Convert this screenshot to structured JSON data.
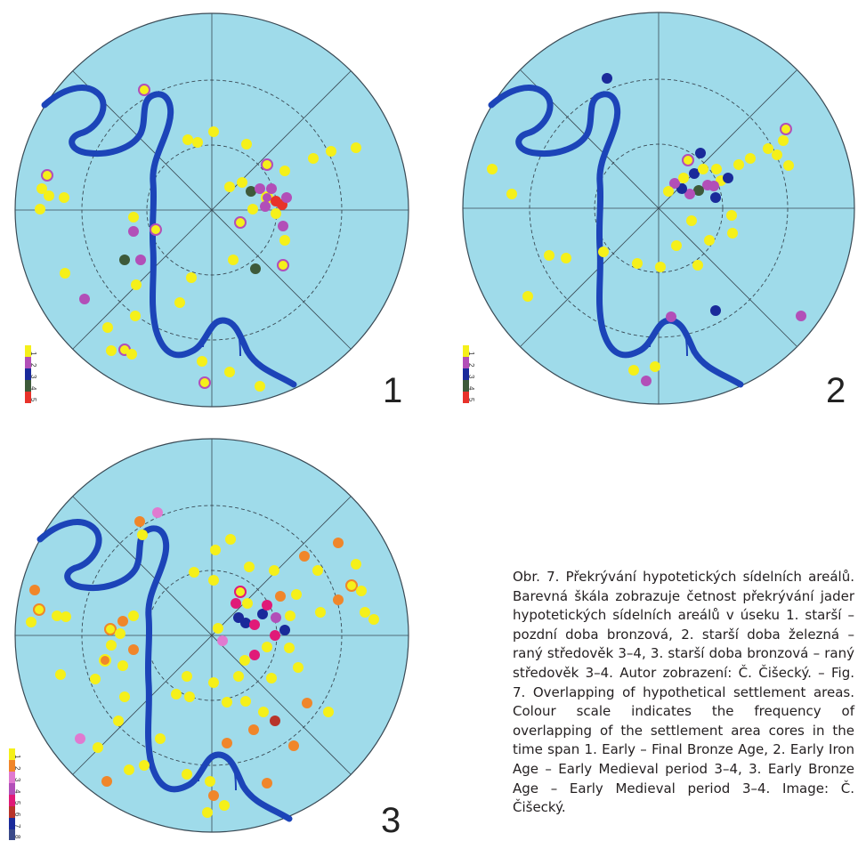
{
  "figure": {
    "caption": "Obr. 7. Překrývání hypotetických sídelních areálů. Barevná škála zobrazuje četnost překrývání jader hypotetických sídelních areálů v úseku 1. starší – pozdní doba bronzová, 2. starší doba železná – raný středověk 3–4, 3. starší doba bronzová – raný středověk 3–4. Autor zobrazení: Č. Čišecký. – Fig. 7. Overlapping of hypothetical settlement areas. Colour scale indicates the frequency of overlapping of the settlement area cores in the time span 1. Early – Final Bronze Age, 2. Early Iron Age – Early Medieval period 3–4, 3. Early Bronze Age – Early Medieval period 3–4. Image: Č. Čišecký."
  },
  "colors": {
    "background": "#ffffff",
    "circle_fill": "#9fdbea",
    "river": "#1c44b8",
    "grid": "#3a4a55",
    "yellow": "#f5f01a",
    "purple": "#b24fb8",
    "blue": "#1a2a9a",
    "dark_green": "#3d5a3a",
    "red": "#e8322a",
    "orange": "#f0862a",
    "pink": "#e07ad0",
    "magenta": "#e01a78",
    "brown": "#b8342a"
  },
  "panels": [
    {
      "number": "1",
      "legend": [
        "1",
        "2",
        "3",
        "4",
        "5"
      ],
      "legend_colors": [
        "#f5f01a",
        "#b24fb8",
        "#1a2a9a",
        "#3d5a3a",
        "#e8322a"
      ]
    },
    {
      "number": "2",
      "legend": [
        "1",
        "2",
        "3",
        "4",
        "5"
      ],
      "legend_colors": [
        "#f5f01a",
        "#b24fb8",
        "#1a2a9a",
        "#3d5a3a",
        "#e8322a"
      ]
    },
    {
      "number": "3",
      "legend": [
        "1",
        "2",
        "3",
        "4",
        "5",
        "6",
        "7",
        "8"
      ],
      "legend_colors": [
        "#f5f01a",
        "#f0862a",
        "#e07ad0",
        "#b24fb8",
        "#e01a78",
        "#b8342a",
        "#1a2a9a",
        "#3a4a88"
      ]
    }
  ]
}
